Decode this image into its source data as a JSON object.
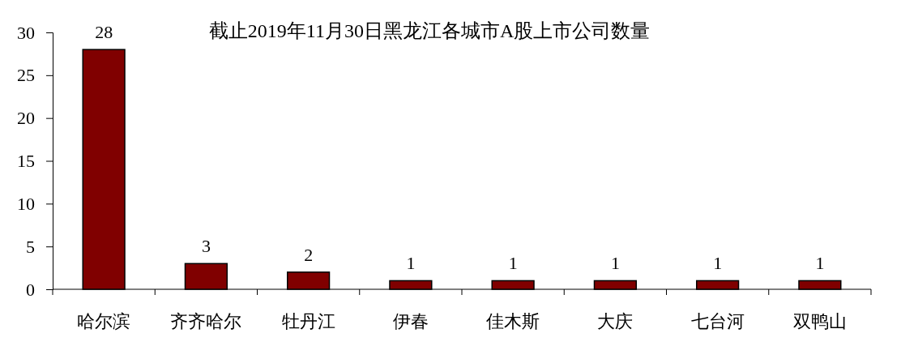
{
  "chart_data": {
    "type": "bar",
    "title": "截止2019年11月30日黑龙江各城市A股上市公司数量",
    "categories": [
      "哈尔滨",
      "齐齐哈尔",
      "牡丹江",
      "伊春",
      "佳木斯",
      "大庆",
      "七台河",
      "双鸭山"
    ],
    "values": [
      28,
      3,
      2,
      1,
      1,
      1,
      1,
      1
    ],
    "color": "#800000",
    "ylim": [
      0,
      30
    ],
    "yticks": [
      0,
      5,
      10,
      15,
      20,
      25,
      30
    ],
    "grid": false,
    "data_labels": true
  }
}
